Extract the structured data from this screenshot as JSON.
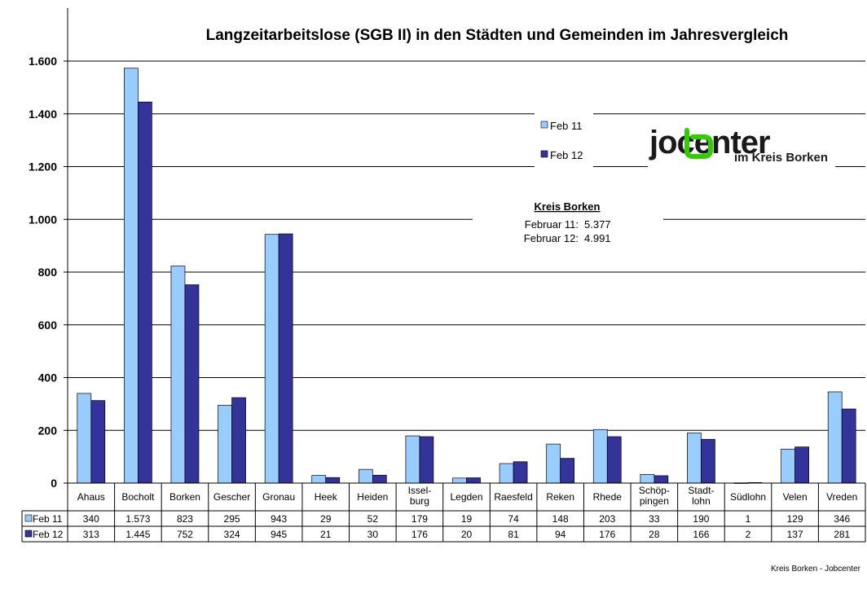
{
  "chart_data": {
    "type": "bar",
    "title": "Langzeitarbeitslose (SGB II) in den Städten und Gemeinden im Jahresvergleich",
    "xlabel": "",
    "ylabel": "",
    "ylim": [
      0,
      1700
    ],
    "yticks": [
      0,
      200,
      400,
      600,
      800,
      1000,
      1200,
      1400,
      1600
    ],
    "ytick_labels": [
      "0",
      "200",
      "400",
      "600",
      "800",
      "1.000",
      "1.200",
      "1.400",
      "1.600"
    ],
    "categories": [
      [
        "Ahaus"
      ],
      [
        "Bocholt"
      ],
      [
        "Borken"
      ],
      [
        "Gescher"
      ],
      [
        "Gronau"
      ],
      [
        "Heek"
      ],
      [
        "Heiden"
      ],
      [
        "Issel-",
        "burg"
      ],
      [
        "Legden"
      ],
      [
        "Raesfeld"
      ],
      [
        "Reken"
      ],
      [
        "Rhede"
      ],
      [
        "Schöp-",
        "pingen"
      ],
      [
        "Stadt-",
        "lohn"
      ],
      [
        "Südlohn"
      ],
      [
        "Velen"
      ],
      [
        "Vreden"
      ]
    ],
    "series": [
      {
        "name": "Feb 11",
        "color": "#99CCFF",
        "values": [
          340,
          1573,
          823,
          295,
          943,
          29,
          52,
          179,
          19,
          74,
          148,
          203,
          33,
          190,
          1,
          129,
          346
        ],
        "labels": [
          "340",
          "1.573",
          "823",
          "295",
          "943",
          "29",
          "52",
          "179",
          "19",
          "74",
          "148",
          "203",
          "33",
          "190",
          "1",
          "129",
          "346"
        ]
      },
      {
        "name": "Feb 12",
        "color": "#333399",
        "values": [
          313,
          1445,
          752,
          324,
          945,
          21,
          30,
          176,
          20,
          81,
          94,
          176,
          28,
          166,
          2,
          137,
          281
        ],
        "labels": [
          "313",
          "1.445",
          "752",
          "324",
          "945",
          "21",
          "30",
          "176",
          "20",
          "81",
          "94",
          "176",
          "28",
          "166",
          "2",
          "137",
          "281"
        ]
      }
    ],
    "legend_position": "top-right",
    "grid": true,
    "data_table": true
  },
  "info_box": {
    "title": "Kreis Borken",
    "lines": [
      {
        "label": "Februar 11:",
        "value": "5.377"
      },
      {
        "label": "Februar 12:",
        "value": "4.991"
      }
    ]
  },
  "logo": {
    "part1": "jo",
    "part2": "center",
    "subtitle": "im Kreis Borken",
    "colors": {
      "dark": "#1a1a1a",
      "green": "#33cc00"
    }
  },
  "footer": "Kreis Borken - Jobcenter"
}
